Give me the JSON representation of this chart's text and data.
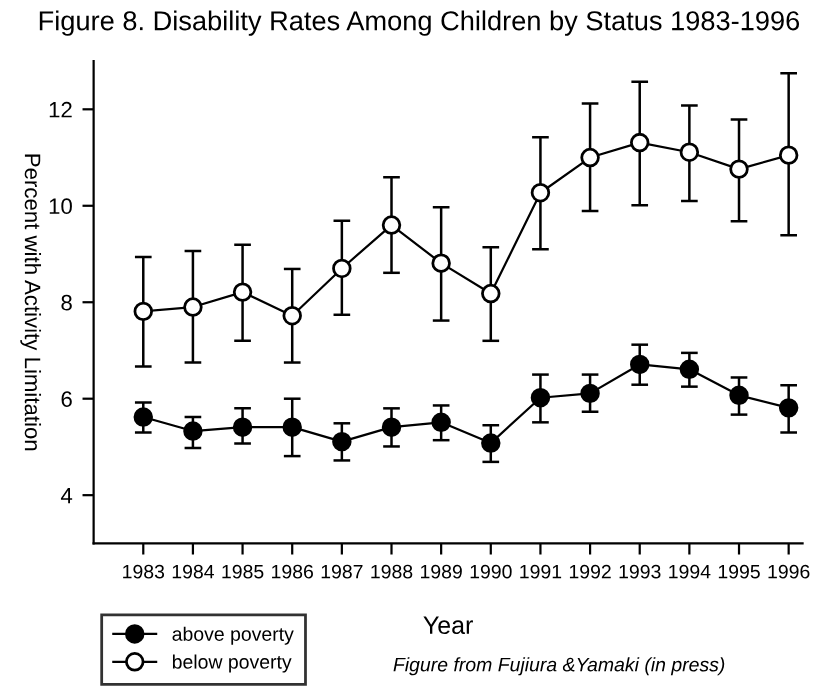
{
  "chart_data": {
    "type": "line",
    "title": "Figure 8. Disability Rates Among Children by Status 1983-1996",
    "xlabel": "Year",
    "ylabel": "Percent with Activity Limitation",
    "categories": [
      "1983",
      "1984",
      "1985",
      "1986",
      "1987",
      "1988",
      "1989",
      "1990",
      "1991",
      "1992",
      "1993",
      "1994",
      "1995",
      "1996"
    ],
    "series": [
      {
        "name": "above poverty",
        "color": "#000000",
        "values": [
          5.62,
          5.33,
          5.41,
          5.41,
          5.11,
          5.41,
          5.51,
          5.08,
          6.02,
          6.11,
          6.71,
          6.61,
          6.07,
          5.81
        ],
        "errors": [
          [
            5.3,
            5.92
          ],
          [
            4.98,
            5.62
          ],
          [
            5.07,
            5.8
          ],
          [
            4.81,
            6.0
          ],
          [
            4.72,
            5.49
          ],
          [
            5.01,
            5.8
          ],
          [
            5.14,
            5.86
          ],
          [
            4.69,
            5.45
          ],
          [
            5.51,
            6.5
          ],
          [
            5.73,
            6.5
          ],
          [
            6.29,
            7.12
          ],
          [
            6.25,
            6.95
          ],
          [
            5.67,
            6.44
          ],
          [
            5.3,
            6.28
          ]
        ]
      },
      {
        "name": "below poverty",
        "color": "#ffffff",
        "values": [
          7.81,
          7.9,
          8.21,
          7.72,
          8.7,
          9.6,
          8.81,
          8.18,
          10.27,
          11.0,
          11.31,
          11.11,
          10.76,
          11.05
        ],
        "errors": [
          [
            6.67,
            8.94
          ],
          [
            6.75,
            9.06
          ],
          [
            7.2,
            9.19
          ],
          [
            6.75,
            8.69
          ],
          [
            7.74,
            9.69
          ],
          [
            8.61,
            10.59
          ],
          [
            7.62,
            9.97
          ],
          [
            7.2,
            9.14
          ],
          [
            9.1,
            11.42
          ],
          [
            9.89,
            12.12
          ],
          [
            10.01,
            12.57
          ],
          [
            10.1,
            12.08
          ],
          [
            9.68,
            11.79
          ],
          [
            9.39,
            12.75
          ]
        ]
      }
    ],
    "ylim": [
      3,
      13
    ],
    "yticks": [
      4,
      6,
      8,
      10,
      12
    ],
    "grid": false,
    "legend": "bottom left",
    "marker": "circle",
    "line_style": "solid",
    "annotations": [
      "Figure from Fujiura &Yamaki (in press)"
    ]
  }
}
